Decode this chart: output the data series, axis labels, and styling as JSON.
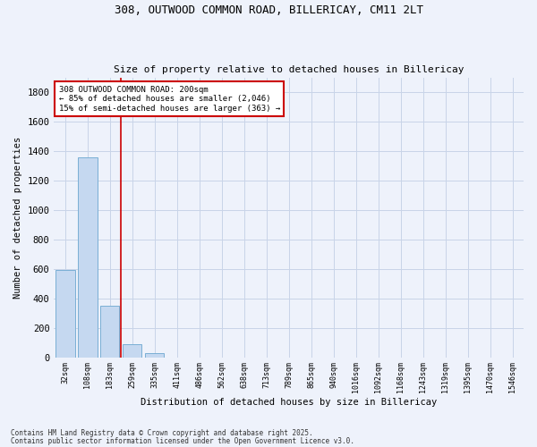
{
  "title1": "308, OUTWOOD COMMON ROAD, BILLERICAY, CM11 2LT",
  "title2": "Size of property relative to detached houses in Billericay",
  "xlabel": "Distribution of detached houses by size in Billericay",
  "ylabel": "Number of detached properties",
  "categories": [
    "32sqm",
    "108sqm",
    "183sqm",
    "259sqm",
    "335sqm",
    "411sqm",
    "486sqm",
    "562sqm",
    "638sqm",
    "713sqm",
    "789sqm",
    "865sqm",
    "940sqm",
    "1016sqm",
    "1092sqm",
    "1168sqm",
    "1243sqm",
    "1319sqm",
    "1395sqm",
    "1470sqm",
    "1546sqm"
  ],
  "values": [
    590,
    1360,
    350,
    88,
    30,
    0,
    0,
    0,
    0,
    0,
    0,
    0,
    0,
    0,
    0,
    0,
    0,
    0,
    0,
    0,
    0
  ],
  "bar_color": "#c5d8f0",
  "bar_edge_color": "#7aafd4",
  "highlight_line_color": "#cc0000",
  "annotation_line1": "308 OUTWOOD COMMON ROAD: 200sqm",
  "annotation_line2": "← 85% of detached houses are smaller (2,046)",
  "annotation_line3": "15% of semi-detached houses are larger (363) →",
  "annotation_box_color": "#cc0000",
  "annotation_bg_color": "#ffffff",
  "ylim": [
    0,
    1900
  ],
  "yticks": [
    0,
    200,
    400,
    600,
    800,
    1000,
    1200,
    1400,
    1600,
    1800
  ],
  "footnote1": "Contains HM Land Registry data © Crown copyright and database right 2025.",
  "footnote2": "Contains public sector information licensed under the Open Government Licence v3.0.",
  "bg_color": "#eef2fb",
  "plot_bg_color": "#eef2fb",
  "grid_color": "#c8d4e8"
}
